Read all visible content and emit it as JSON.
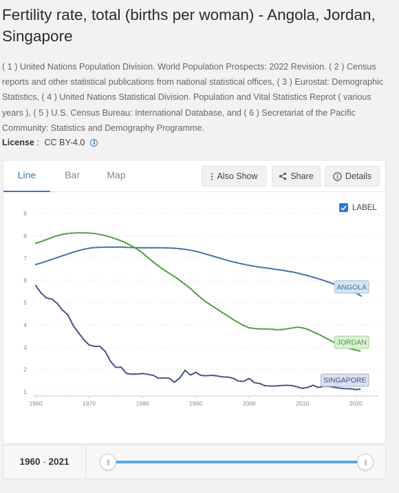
{
  "title": "Fertility rate, total (births per woman) - Angola, Jordan, Singapore",
  "source": "( 1 ) United Nations Population Division. World Population Prospects: 2022 Revision. ( 2 ) Census reports and other statistical publications from national statistical offices, ( 3 ) Eurostat: Demographic Statistics, ( 4 ) United Nations Statistical Division. Population and Vital Statistics Reprot ( various years ), ( 5 ) U.S. Census Bureau: International Database, and ( 6 ) Secretariat of the Pacific Community: Statistics and Demography Programme.",
  "license": {
    "label": "License",
    "sep": " : ",
    "value": "CC BY-4.0",
    "icon": "info-icon"
  },
  "tabs": [
    {
      "label": "Line",
      "active": true
    },
    {
      "label": "Bar",
      "active": false
    },
    {
      "label": "Map",
      "active": false
    }
  ],
  "toolbar": {
    "also_show": "Also Show",
    "share": "Share",
    "details": "Details"
  },
  "label_toggle": {
    "label": "LABEL",
    "checked": true
  },
  "range": {
    "start": "1960",
    "separator": " - ",
    "end": "2021"
  },
  "chart_data": {
    "type": "line",
    "title": "",
    "xlabel": "",
    "ylabel": "",
    "xlim": [
      1960,
      2021
    ],
    "ylim": [
      1,
      9
    ],
    "x_ticks": [
      1960,
      1970,
      1980,
      1990,
      2000,
      2010,
      2020
    ],
    "y_ticks": [
      1,
      2,
      3,
      4,
      5,
      6,
      7,
      8,
      9
    ],
    "grid": true,
    "x": [
      1960,
      1961,
      1962,
      1963,
      1964,
      1965,
      1966,
      1967,
      1968,
      1969,
      1970,
      1971,
      1972,
      1973,
      1974,
      1975,
      1976,
      1977,
      1978,
      1979,
      1980,
      1981,
      1982,
      1983,
      1984,
      1985,
      1986,
      1987,
      1988,
      1989,
      1990,
      1991,
      1992,
      1993,
      1994,
      1995,
      1996,
      1997,
      1998,
      1999,
      2000,
      2001,
      2002,
      2003,
      2004,
      2005,
      2006,
      2007,
      2008,
      2009,
      2010,
      2011,
      2012,
      2013,
      2014,
      2015,
      2016,
      2017,
      2018,
      2019,
      2020,
      2021
    ],
    "series": [
      {
        "name": "ANGOLA",
        "color": "#3a6ea5",
        "label_bg": "#d6e5f3",
        "label_border": "#9bbbdc",
        "values": [
          6.71,
          6.78,
          6.86,
          6.94,
          7.02,
          7.1,
          7.18,
          7.26,
          7.33,
          7.39,
          7.44,
          7.47,
          7.48,
          7.49,
          7.49,
          7.49,
          7.49,
          7.48,
          7.47,
          7.46,
          7.46,
          7.46,
          7.46,
          7.46,
          7.46,
          7.45,
          7.44,
          7.42,
          7.39,
          7.35,
          7.3,
          7.24,
          7.17,
          7.1,
          7.03,
          6.96,
          6.89,
          6.83,
          6.77,
          6.72,
          6.67,
          6.63,
          6.59,
          6.56,
          6.53,
          6.49,
          6.46,
          6.42,
          6.38,
          6.33,
          6.27,
          6.21,
          6.14,
          6.07,
          5.99,
          5.91,
          5.82,
          5.73,
          5.64,
          5.55,
          5.44,
          5.3
        ]
      },
      {
        "name": "JORDAN",
        "color": "#4a9a3e",
        "label_bg": "#dcefd5",
        "label_border": "#9fcf93",
        "values": [
          7.66,
          7.74,
          7.83,
          7.92,
          8.0,
          8.06,
          8.1,
          8.12,
          8.13,
          8.13,
          8.12,
          8.1,
          8.06,
          8.01,
          7.94,
          7.86,
          7.77,
          7.67,
          7.54,
          7.4,
          7.23,
          7.03,
          6.83,
          6.64,
          6.47,
          6.32,
          6.17,
          6.0,
          5.82,
          5.63,
          5.41,
          5.2,
          5.02,
          4.86,
          4.71,
          4.55,
          4.4,
          4.24,
          4.1,
          3.97,
          3.87,
          3.84,
          3.82,
          3.82,
          3.81,
          3.79,
          3.79,
          3.82,
          3.86,
          3.9,
          3.87,
          3.8,
          3.69,
          3.58,
          3.46,
          3.33,
          3.21,
          3.1,
          3.0,
          2.93,
          2.87,
          2.82
        ]
      },
      {
        "name": "SINGAPORE",
        "color": "#3e4d80",
        "label_bg": "#dde0ee",
        "label_border": "#a9b0cf",
        "values": [
          5.76,
          5.43,
          5.21,
          5.16,
          4.97,
          4.66,
          4.46,
          3.98,
          3.65,
          3.34,
          3.1,
          3.04,
          3.04,
          2.82,
          2.37,
          2.09,
          2.11,
          1.82,
          1.79,
          1.79,
          1.82,
          1.78,
          1.74,
          1.61,
          1.62,
          1.61,
          1.43,
          1.62,
          1.96,
          1.75,
          1.87,
          1.73,
          1.72,
          1.74,
          1.71,
          1.67,
          1.66,
          1.61,
          1.48,
          1.47,
          1.6,
          1.41,
          1.37,
          1.27,
          1.26,
          1.26,
          1.28,
          1.29,
          1.28,
          1.22,
          1.15,
          1.2,
          1.29,
          1.19,
          1.25,
          1.24,
          1.2,
          1.16,
          1.14,
          1.14,
          1.1,
          1.12
        ]
      }
    ]
  }
}
